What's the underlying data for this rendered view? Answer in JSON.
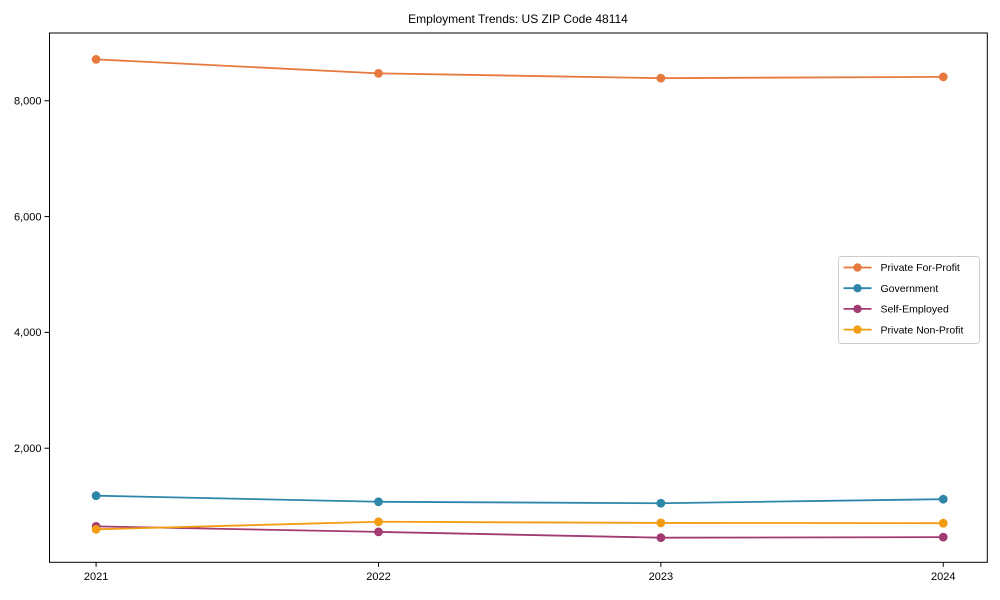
{
  "chart_data": {
    "type": "line",
    "title": "Employment Trends: US ZIP Code 48114",
    "x_labels": [
      "2021",
      "2022",
      "2023",
      "2024"
    ],
    "x_values": [
      2021,
      2022,
      2023,
      2024
    ],
    "xlim": [
      2020.835,
      2024.156
    ],
    "ylim": [
      30,
      9170
    ],
    "y_ticks": [
      2000,
      4000,
      6000,
      8000
    ],
    "y_tick_labels": [
      "2,000",
      "4,000",
      "6,000",
      "8,000"
    ],
    "grid": false,
    "legend_position": "center-right",
    "series": [
      {
        "name": "Private For-Profit",
        "color": "#E8793E",
        "values": [
          8715,
          8473,
          8390,
          8413
        ]
      },
      {
        "name": "Government",
        "color": "#2E86AB",
        "values": [
          1180,
          1075,
          1050,
          1120
        ]
      },
      {
        "name": "Self-Employed",
        "color": "#A23B72",
        "values": [
          650,
          555,
          455,
          465
        ]
      },
      {
        "name": "Private Non-Profit",
        "color": "#F39C12",
        "values": [
          600,
          730,
          710,
          705
        ]
      }
    ],
    "style": {
      "spine_color": "#000000",
      "legend_border_color": "#cccccc",
      "legend_fill": "#ffffff"
    }
  }
}
